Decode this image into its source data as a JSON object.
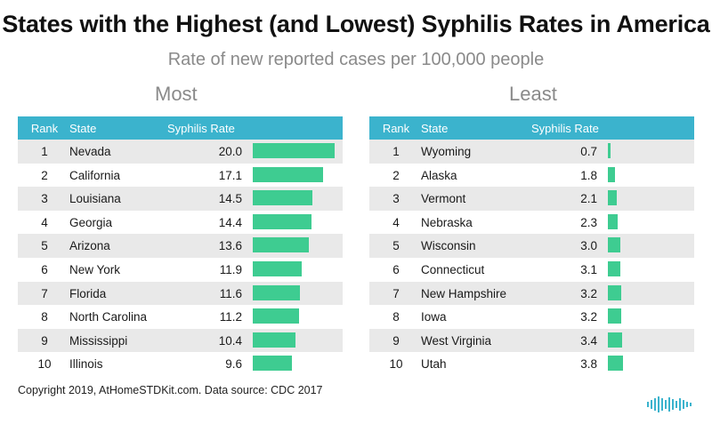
{
  "title": "States with the Highest (and Lowest) Syphilis Rates in America",
  "subtitle": "Rate of new reported cases per 100,000 people",
  "headers": {
    "rank": "Rank",
    "state": "State",
    "rate": "Syphilis Rate"
  },
  "footer": "Copyright 2019, AtHomeSTDKit.com. Data source: CDC 2017",
  "colors": {
    "header": "#3bb3cd",
    "bar": "#3ecc91",
    "stripe": "#e9e9e9"
  },
  "chart_data": [
    {
      "type": "table",
      "title": "Most",
      "columns": [
        "Rank",
        "State",
        "Syphilis Rate"
      ],
      "rows": [
        {
          "rank": "1",
          "state": "Nevada",
          "rate": "20.0",
          "value": 20.0
        },
        {
          "rank": "2",
          "state": "California",
          "rate": "17.1",
          "value": 17.1
        },
        {
          "rank": "3",
          "state": "Louisiana",
          "rate": "14.5",
          "value": 14.5
        },
        {
          "rank": "4",
          "state": "Georgia",
          "rate": "14.4",
          "value": 14.4
        },
        {
          "rank": "5",
          "state": "Arizona",
          "rate": "13.6",
          "value": 13.6
        },
        {
          "rank": "6",
          "state": "New York",
          "rate": "11.9",
          "value": 11.9
        },
        {
          "rank": "7",
          "state": "Florida",
          "rate": "11.6",
          "value": 11.6
        },
        {
          "rank": "8",
          "state": "North Carolina",
          "rate": "11.2",
          "value": 11.2
        },
        {
          "rank": "9",
          "state": "Mississippi",
          "rate": "10.4",
          "value": 10.4
        },
        {
          "rank": "10",
          "state": "Illinois",
          "rate": "9.6",
          "value": 9.6
        }
      ]
    },
    {
      "type": "table",
      "title": "Least",
      "columns": [
        "Rank",
        "State",
        "Syphilis Rate"
      ],
      "rows": [
        {
          "rank": "1",
          "state": "Wyoming",
          "rate": "0.7",
          "value": 0.7
        },
        {
          "rank": "2",
          "state": "Alaska",
          "rate": "1.8",
          "value": 1.8
        },
        {
          "rank": "3",
          "state": "Vermont",
          "rate": "2.1",
          "value": 2.1
        },
        {
          "rank": "4",
          "state": "Nebraska",
          "rate": "2.3",
          "value": 2.3
        },
        {
          "rank": "5",
          "state": "Wisconsin",
          "rate": "3.0",
          "value": 3.0
        },
        {
          "rank": "6",
          "state": "Connecticut",
          "rate": "3.1",
          "value": 3.1
        },
        {
          "rank": "7",
          "state": "New Hampshire",
          "rate": "3.2",
          "value": 3.2
        },
        {
          "rank": "8",
          "state": "Iowa",
          "rate": "3.2",
          "value": 3.2
        },
        {
          "rank": "9",
          "state": "West Virginia",
          "rate": "3.4",
          "value": 3.4
        },
        {
          "rank": "10",
          "state": "Utah",
          "rate": "3.8",
          "value": 3.8
        }
      ]
    }
  ]
}
